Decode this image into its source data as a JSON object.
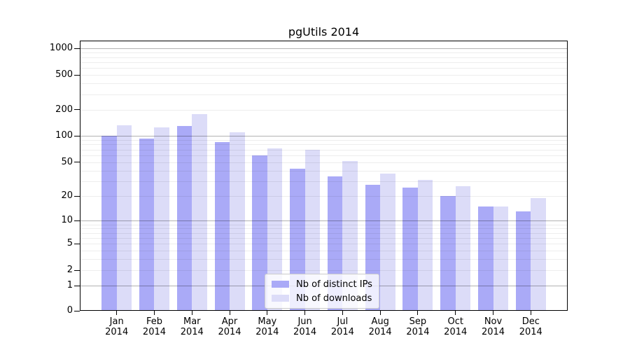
{
  "chart_data": {
    "type": "bar",
    "title": "pgUtils 2014",
    "categories": [
      "Jan 2014",
      "Feb 2014",
      "Mar 2014",
      "Apr 2014",
      "May 2014",
      "Jun 2014",
      "Jul 2014",
      "Aug 2014",
      "Sep 2014",
      "Oct 2014",
      "Nov 2014",
      "Dec 2014"
    ],
    "series": [
      {
        "name": "Nb of distinct IPs",
        "color": "#aaaaf7",
        "values": [
          100,
          94,
          130,
          86,
          60,
          42,
          34,
          27,
          25,
          20,
          15,
          13
        ]
      },
      {
        "name": "Nb of downloads",
        "color": "#dcdcf8",
        "values": [
          133,
          127,
          180,
          110,
          72,
          70,
          52,
          37,
          31,
          26,
          15,
          19
        ]
      }
    ],
    "yscale": "log10(value+1)",
    "ylim": [
      0,
      1200
    ],
    "y_tick_labels": [
      1000,
      500,
      200,
      100,
      50,
      20,
      10,
      5,
      2,
      1,
      0
    ],
    "grid": "on",
    "legend_position": "inside-lower-center"
  },
  "x_axis": {
    "months": [
      "Jan",
      "Feb",
      "Mar",
      "Apr",
      "May",
      "Jun",
      "Jul",
      "Aug",
      "Sep",
      "Oct",
      "Nov",
      "Dec"
    ],
    "year": "2014"
  },
  "colors": {
    "ips_bar": "#aaaaf7",
    "downloads_bar": "#dcdcf8",
    "axis": "#000000",
    "legend_border": "#cccccc"
  }
}
